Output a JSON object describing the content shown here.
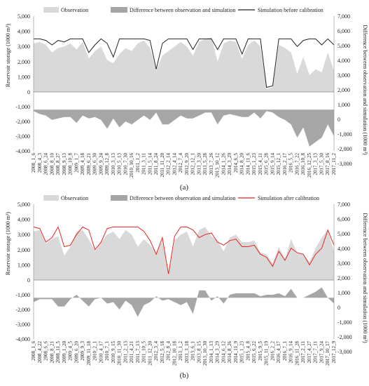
{
  "chart_data": [
    {
      "type": "area",
      "panel_label": "(a)",
      "legend": [
        "Observation",
        "Difference between observation and simulation",
        "Simulation before calibration"
      ],
      "ylabel_left": "Reservoir storage (1000 m³)",
      "ylabel_right": "Difference between observation and simulation (1000 m³)",
      "left_ticks": [
        "5,000",
        "4,000",
        "3,000",
        "2,000",
        "1,000",
        "0",
        "-1,000",
        "-2,000",
        "-3,000",
        "-4,000"
      ],
      "right_ticks": [
        "7,000",
        "6,000",
        "5,000",
        "4,000",
        "3,000",
        "2,000",
        "1,000",
        "0",
        "-1,000",
        "-2,000",
        "-3,000"
      ],
      "ylim_left": [
        -4000,
        5000
      ],
      "ylim_right": [
        -3000,
        7000
      ],
      "x_dates": [
        "2008_1_6",
        "2008_4_3",
        "2008_6_24",
        "2008_8_10",
        "2008_8_27",
        "2008_9_13",
        "2008_10_8",
        "2009_1_7",
        "2009_4_18",
        "2009_6_21",
        "2009_6_30",
        "2009_9_24",
        "2009_12_8",
        "2010_3_13",
        "2010_5_13",
        "2010_7_30",
        "2010_10_16",
        "2011_1_2",
        "2011_3_11",
        "2011_5_14",
        "2011_8_24",
        "2011_11_20",
        "2012_2_14",
        "2012_4_14",
        "2012_7_4",
        "2012_9_20",
        "2012_12_1",
        "2013_3_20",
        "2013_5_28",
        "2013_7_26",
        "2013_10_12",
        "2014_1_26",
        "2014_3_29",
        "2014_6_5",
        "2014_8_20",
        "2014_11_6",
        "2015_1_23",
        "2015_4_11",
        "2015_6_28",
        "2015_9_14",
        "2015_12_1",
        "2016_2_17",
        "2016_5_5",
        "2016_7_22",
        "2016_10_8",
        "2016_12_25",
        "2017_3_13",
        "2017_5_30",
        "2017_8_16",
        "2017_11_2"
      ],
      "observation": [
        3200,
        3300,
        3100,
        2600,
        2900,
        3000,
        3200,
        2800,
        3300,
        2200,
        2700,
        3000,
        2100,
        1900,
        2500,
        2900,
        2700,
        3200,
        3400,
        2900,
        1400,
        2400,
        2700,
        3000,
        3300,
        3000,
        2400,
        3300,
        3500,
        3600,
        2000,
        3200,
        3400,
        3300,
        2200,
        3100,
        3400,
        3000,
        200,
        300,
        3100,
        2900,
        2600,
        1200,
        2300,
        1100,
        1500,
        1300,
        2600,
        1400
      ],
      "simulation_before": [
        3500,
        3500,
        3400,
        3100,
        3400,
        3300,
        3500,
        3500,
        3500,
        2600,
        3100,
        3500,
        3200,
        2300,
        3500,
        3500,
        3500,
        3500,
        3500,
        3400,
        1500,
        3200,
        3500,
        3500,
        3500,
        3500,
        2800,
        3500,
        3500,
        3500,
        2800,
        3500,
        3500,
        3500,
        2500,
        3500,
        3500,
        3500,
        300,
        400,
        3500,
        3500,
        3500,
        3000,
        3400,
        3500,
        3500,
        3100,
        3500,
        3100
      ],
      "difference": [
        -100,
        -300,
        -400,
        -700,
        -600,
        -500,
        -500,
        -900,
        -400,
        -600,
        -500,
        -700,
        -1300,
        -600,
        -1200,
        -800,
        -1000,
        -700,
        -400,
        -700,
        -200,
        -1000,
        -1000,
        -700,
        -400,
        -600,
        -600,
        -400,
        -200,
        -200,
        -1000,
        -400,
        -300,
        -400,
        -500,
        -500,
        -200,
        -600,
        -100,
        -200,
        -500,
        -700,
        -1000,
        -1900,
        -1200,
        -2500,
        -2200,
        -1900,
        -1000,
        -1800
      ]
    },
    {
      "type": "area",
      "panel_label": "(b)",
      "legend": [
        "Observation",
        "Difference between observation and simulation",
        "Simulation after calibration"
      ],
      "ylabel_left": "Reservoir storage (1000 m³)",
      "ylabel_right": "Difference between observation and simulation (1000 m³)",
      "left_ticks": [
        "5,000",
        "4,000",
        "3,000",
        "2,000",
        "1,000",
        "0",
        "-1,000",
        "-2,000",
        "-3,000",
        "-4,000"
      ],
      "right_ticks": [
        "7,000",
        "6,000",
        "5,000",
        "4,000",
        "3,000",
        "2,000",
        "1,000",
        "0",
        "-1,000",
        "-2,000",
        "-3,000"
      ],
      "ylim_left": [
        -4000,
        5000
      ],
      "ylim_right": [
        -3000,
        7000
      ],
      "x_dates": [
        "2008_1_6",
        "2008_4_22",
        "2008_6_6",
        "2008_8_21",
        "2008_11_5",
        "2009_1_20",
        "2009_4_5",
        "2009_6_20",
        "2009_9_3",
        "2009_11_18",
        "2010_2_1",
        "2010_4_17",
        "2010_7_1",
        "2010_9_15",
        "2010_11_30",
        "2011_2_13",
        "2011_4_21",
        "2011_7_13",
        "2011_10_5",
        "2011_12_20",
        "2012_3_4",
        "2012_5_18",
        "2012_8_4",
        "2012_10_18",
        "2013_1_2",
        "2013_3_18",
        "2013_6_1",
        "2013_8_15",
        "2013_10_30",
        "2014_1_13",
        "2014_3_29",
        "2014_6_12",
        "2014_8_26",
        "2014_11_9",
        "2015_1_23",
        "2015_4_8",
        "2015_6_22",
        "2015_9_5",
        "2015_11_19",
        "2016_2_2",
        "2016_4_17",
        "2016_7_1",
        "2016_9_14",
        "2016_11_28",
        "2017_2_11",
        "2017_4_27",
        "2017_7_11",
        "2017_9_24",
        "2017_10_17",
        "2017_12_9"
      ],
      "observation": [
        3200,
        3300,
        2400,
        2700,
        2900,
        1600,
        2200,
        3200,
        3300,
        2700,
        1900,
        2500,
        3000,
        3200,
        2700,
        3300,
        3000,
        2200,
        2700,
        2300,
        1800,
        2600,
        300,
        2600,
        3000,
        3200,
        2200,
        3300,
        3500,
        2900,
        2600,
        1900,
        2800,
        3000,
        2500,
        2500,
        2600,
        1800,
        1700,
        1100,
        2200,
        1400,
        2700,
        1800,
        1700,
        1200,
        2100,
        2800,
        3300,
        1900
      ],
      "simulation_after": [
        3500,
        3400,
        2500,
        2800,
        3500,
        2200,
        2300,
        3000,
        3500,
        3300,
        2000,
        2500,
        3400,
        3500,
        3500,
        3500,
        3500,
        3500,
        3200,
        2600,
        1700,
        2800,
        400,
        2900,
        3500,
        3500,
        3300,
        2800,
        3000,
        3100,
        2500,
        2300,
        2600,
        2700,
        2200,
        2200,
        2300,
        1700,
        1500,
        900,
        1900,
        1300,
        2100,
        1800,
        1700,
        1000,
        1700,
        2100,
        3300,
        2300
      ],
      "difference": [
        -300,
        -100,
        -100,
        -100,
        -600,
        -600,
        -100,
        200,
        -200,
        -600,
        -100,
        0,
        -400,
        -300,
        -800,
        -200,
        -500,
        -1300,
        -500,
        -300,
        100,
        -200,
        -100,
        -300,
        -500,
        -300,
        -1100,
        500,
        500,
        -200,
        100,
        -400,
        200,
        300,
        300,
        300,
        300,
        100,
        200,
        200,
        300,
        100,
        600,
        0,
        0,
        200,
        400,
        700,
        0,
        -400
      ]
    }
  ]
}
